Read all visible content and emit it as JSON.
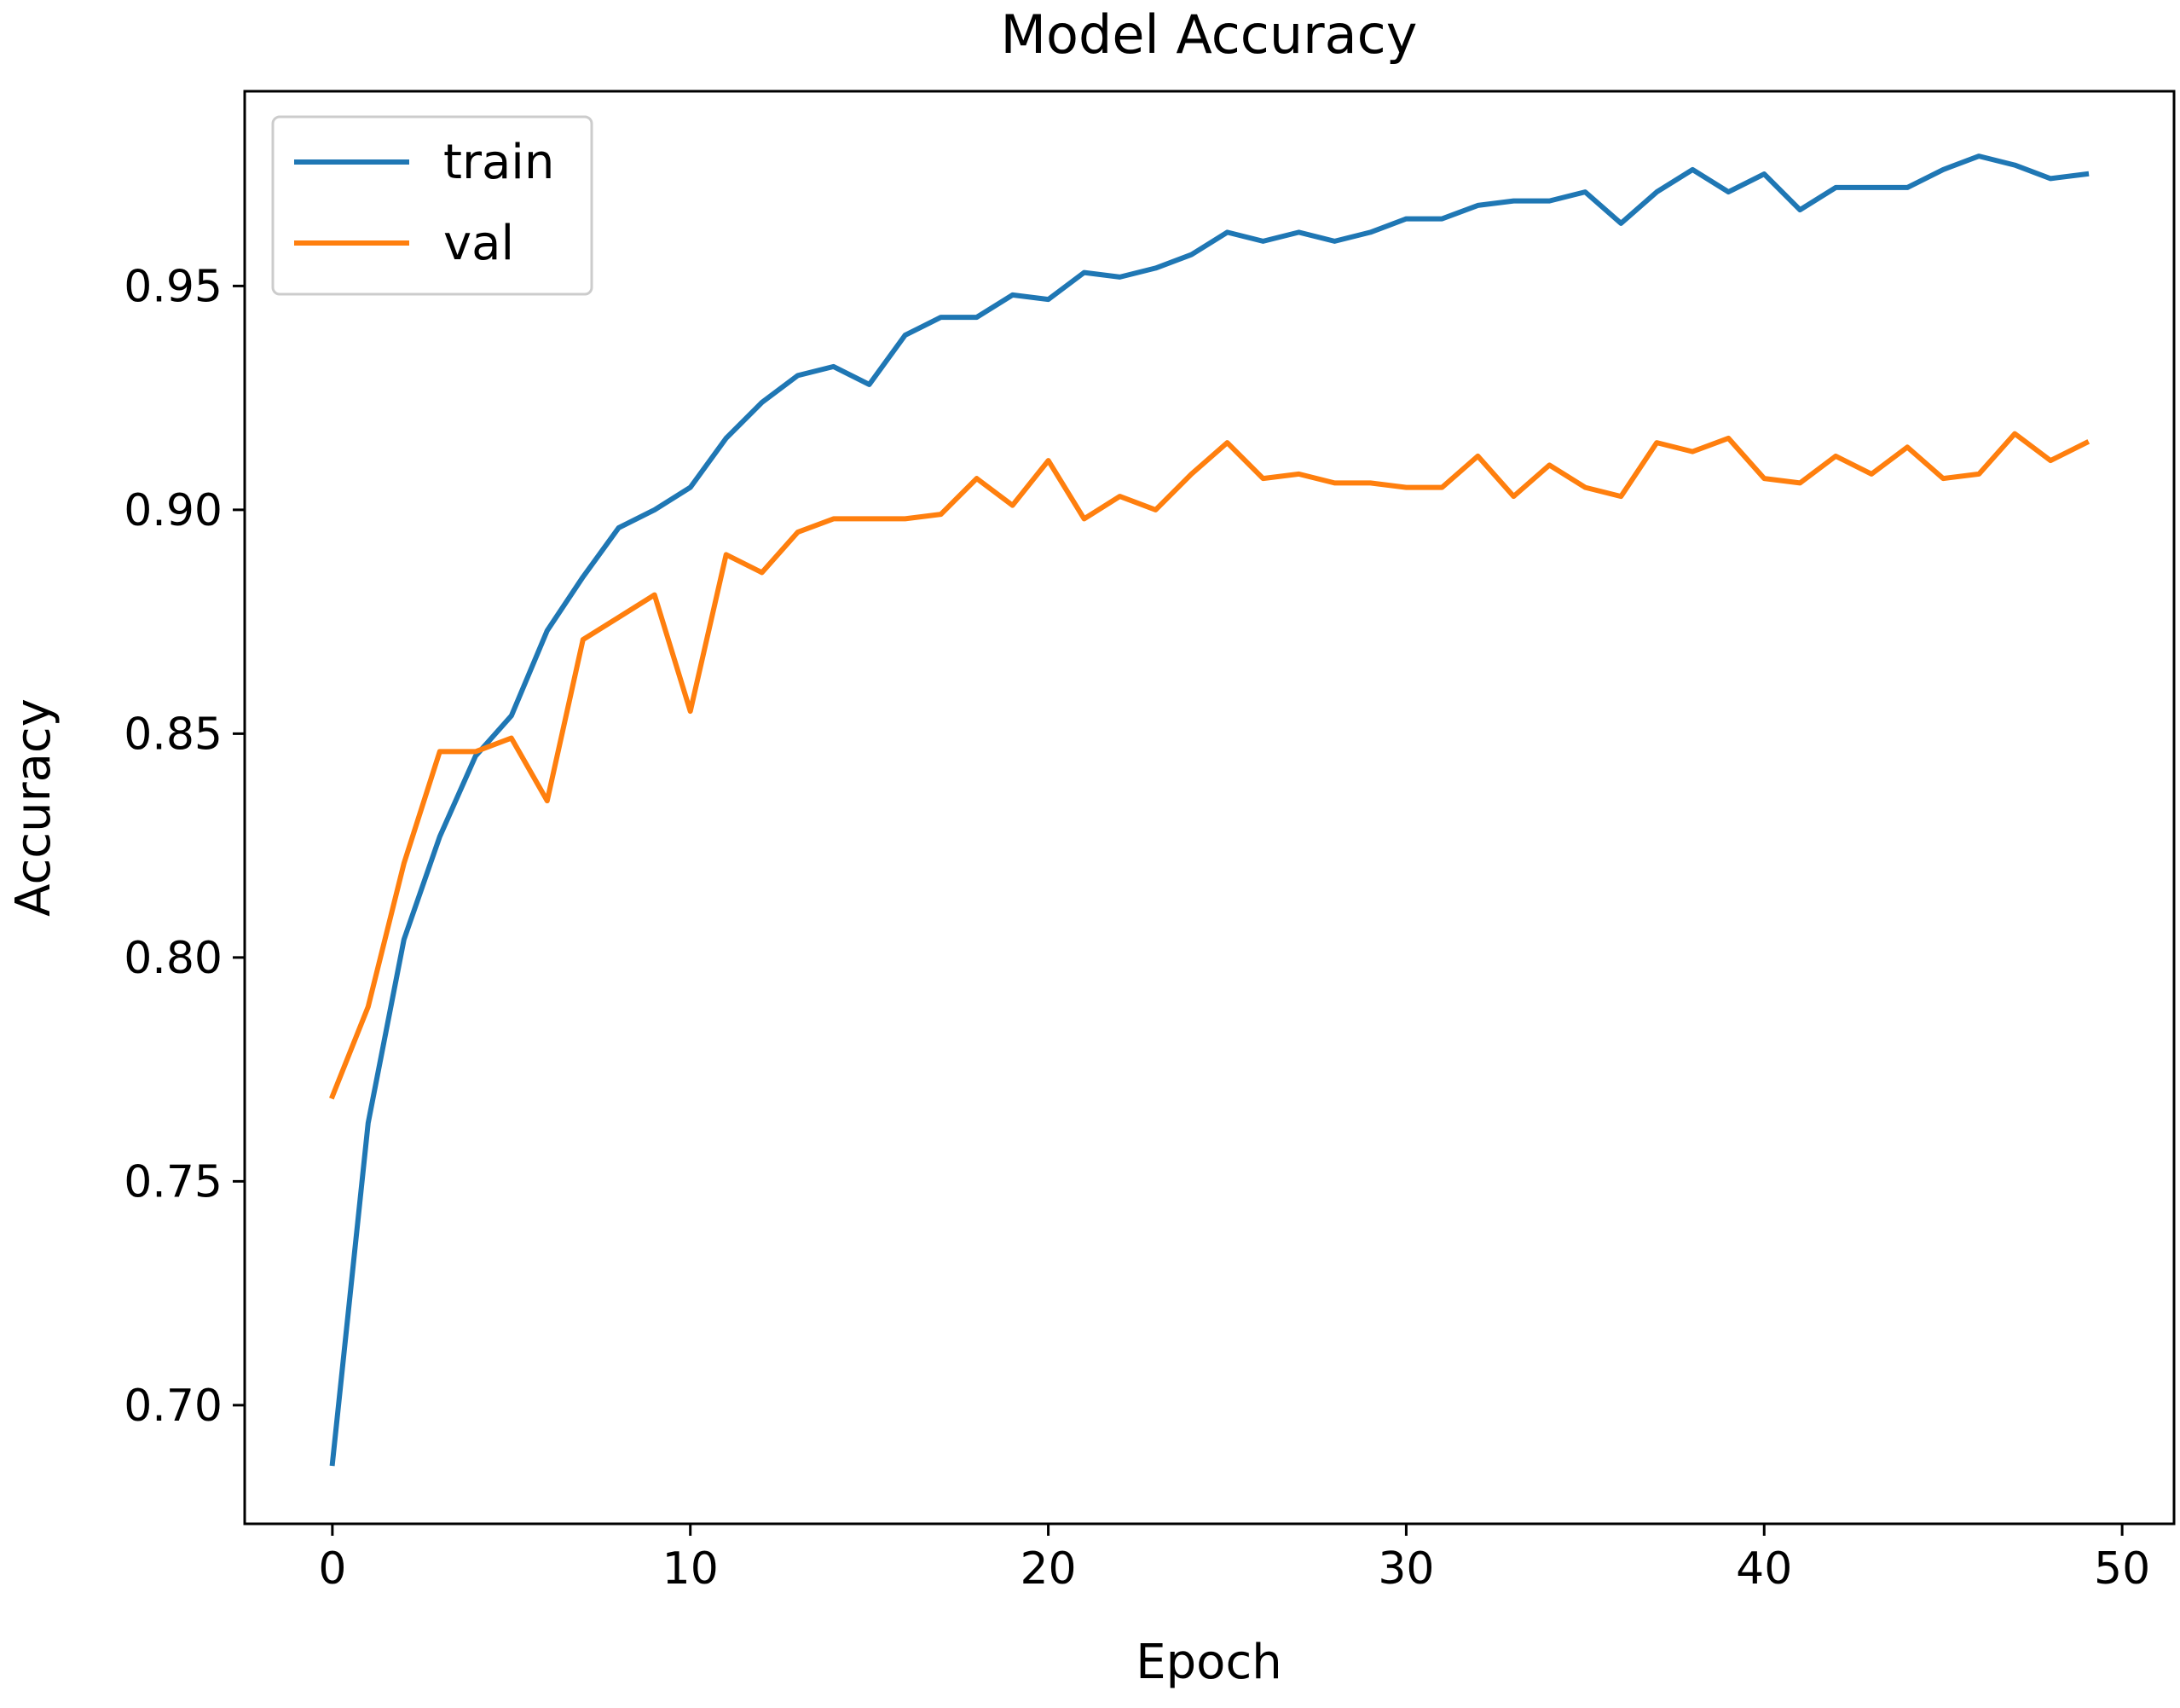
{
  "chart_data": {
    "type": "line",
    "title": "Model Accuracy",
    "xlabel": "Epoch",
    "ylabel": "Accuracy",
    "xlim": [
      -2.45,
      51.45
    ],
    "ylim": [
      0.6735,
      0.9935
    ],
    "xticks": [
      0,
      10,
      20,
      30,
      40,
      50
    ],
    "xtick_labels": [
      "0",
      "10",
      "20",
      "30",
      "40",
      "50"
    ],
    "yticks": [
      0.7,
      0.75,
      0.8,
      0.85,
      0.9,
      0.95
    ],
    "ytick_labels": [
      "0.70",
      "0.75",
      "0.80",
      "0.85",
      "0.90",
      "0.95"
    ],
    "grid": false,
    "legend_position": "top-left",
    "x": [
      0,
      1,
      2,
      3,
      4,
      5,
      6,
      7,
      8,
      9,
      10,
      11,
      12,
      13,
      14,
      15,
      16,
      17,
      18,
      19,
      20,
      21,
      22,
      23,
      24,
      25,
      26,
      27,
      28,
      29,
      30,
      31,
      32,
      33,
      34,
      35,
      36,
      37,
      38,
      39,
      40,
      41,
      42,
      43,
      44,
      45,
      46,
      47,
      48,
      49
    ],
    "series": [
      {
        "name": "train",
        "color": "#1f77b4",
        "values": [
          0.687,
          0.763,
          0.804,
          0.827,
          0.845,
          0.854,
          0.873,
          0.885,
          0.896,
          0.9,
          0.905,
          0.916,
          0.924,
          0.93,
          0.932,
          0.928,
          0.939,
          0.943,
          0.943,
          0.948,
          0.947,
          0.953,
          0.952,
          0.954,
          0.957,
          0.962,
          0.96,
          0.962,
          0.96,
          0.962,
          0.965,
          0.965,
          0.968,
          0.969,
          0.969,
          0.971,
          0.964,
          0.971,
          0.976,
          0.971,
          0.975,
          0.967,
          0.972,
          0.972,
          0.972,
          0.976,
          0.979,
          0.977,
          0.974,
          0.975
        ]
      },
      {
        "name": "val",
        "color": "#ff7f0e",
        "values": [
          0.769,
          0.789,
          0.821,
          0.846,
          0.846,
          0.849,
          0.835,
          0.871,
          0.876,
          0.881,
          0.855,
          0.89,
          0.886,
          0.895,
          0.898,
          0.898,
          0.898,
          0.899,
          0.907,
          0.901,
          0.911,
          0.898,
          0.903,
          0.9,
          0.908,
          0.915,
          0.907,
          0.908,
          0.906,
          0.906,
          0.905,
          0.905,
          0.912,
          0.903,
          0.91,
          0.905,
          0.903,
          0.915,
          0.913,
          0.916,
          0.907,
          0.906,
          0.912,
          0.908,
          0.914,
          0.907,
          0.908,
          0.917,
          0.911,
          0.915
        ]
      }
    ]
  }
}
